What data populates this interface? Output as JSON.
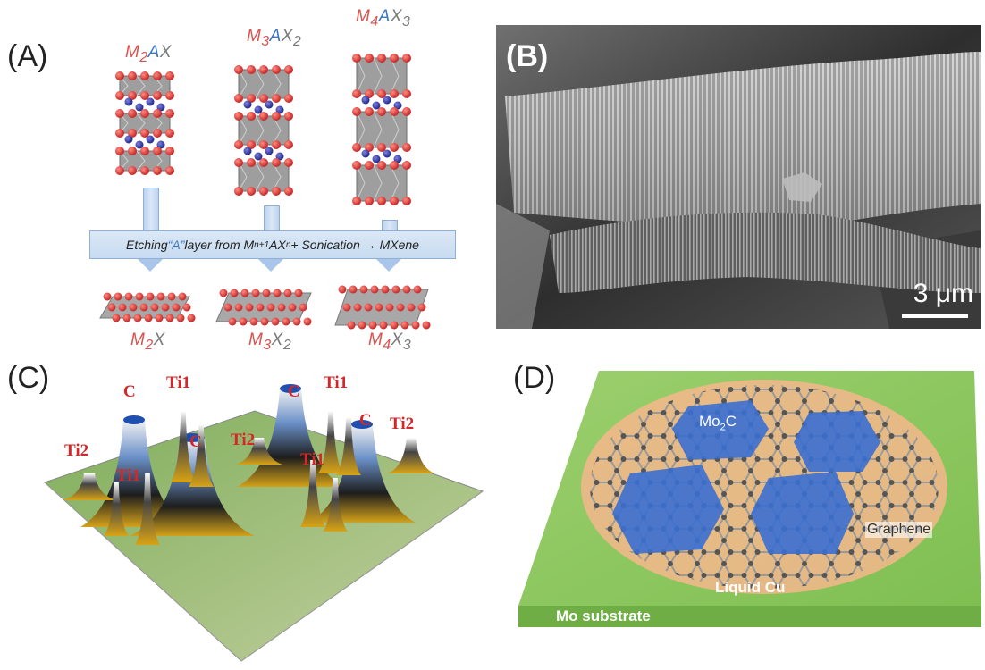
{
  "panels": {
    "a": {
      "label": "(A)",
      "top_formulas": [
        {
          "m": "M",
          "ms": "2",
          "a": "A",
          "x": "X",
          "xs": ""
        },
        {
          "m": "M",
          "ms": "3",
          "a": "A",
          "x": "X",
          "xs": "2"
        },
        {
          "m": "M",
          "ms": "4",
          "a": "A",
          "x": "X",
          "xs": "3"
        }
      ],
      "etch_text": {
        "pre": "Etching ",
        "quoted": "“A”",
        "mid": " layer from M",
        "sub1": "n+1",
        "mid2": "AX",
        "sub2": "n",
        "post": " + Sonication → MXene"
      },
      "bottom_formulas": [
        {
          "m": "M",
          "ms": "2",
          "x": "X",
          "xs": ""
        },
        {
          "m": "M",
          "ms": "3",
          "x": "X",
          "xs": "2"
        },
        {
          "m": "M",
          "ms": "4",
          "x": "X",
          "xs": "3"
        }
      ]
    },
    "b": {
      "label": "(B)",
      "scale_label": "3 μm"
    },
    "c": {
      "label": "(C)",
      "peaks": [
        "C",
        "Ti1",
        "C",
        "Ti1",
        "C",
        "Ti2",
        "Ti2",
        "C",
        "Ti1",
        "Ti2",
        "Ti1"
      ]
    },
    "d": {
      "label": "(D)",
      "mo2c_main": "Mo",
      "mo2c_sub": "2",
      "mo2c_tail": "C",
      "graphene_label": "Graphene",
      "liquid_cu_label": "Liquid Cu",
      "substrate_label": "Mo substrate"
    }
  },
  "colors": {
    "metal": "#d9534f",
    "a_element": "#3b78c2",
    "x_element": "#7a7a7a",
    "peak_label": "#d62728",
    "substrate": "#8cc563",
    "liquid_cu": "#f0b88a",
    "mo2c": "#3a6fd0"
  }
}
